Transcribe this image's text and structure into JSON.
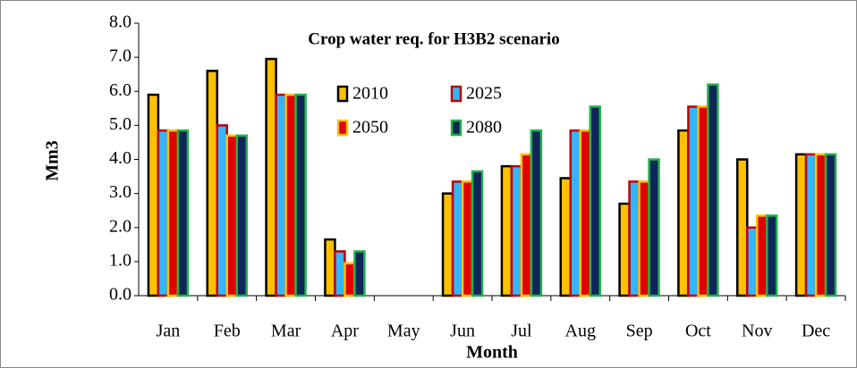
{
  "chart_data": {
    "type": "bar",
    "title": "Crop water req. for H3B2 scenario",
    "xlabel": "Month",
    "ylabel": "Mm3",
    "categories": [
      "Jan",
      "Feb",
      "Mar",
      "Apr",
      "May",
      "Jun",
      "Jul",
      "Aug",
      "Sep",
      "Oct",
      "Nov",
      "Dec"
    ],
    "series": [
      {
        "name": "2010",
        "color": "#ffc000",
        "edgecolor": "#000000",
        "values": [
          5.9,
          6.6,
          6.95,
          1.65,
          0,
          3.0,
          3.8,
          3.45,
          2.7,
          4.85,
          4.0,
          4.15
        ]
      },
      {
        "name": "2025",
        "color": "#33b5ff",
        "edgecolor": "#c00000",
        "values": [
          4.85,
          5.0,
          5.9,
          1.3,
          0,
          3.35,
          3.8,
          4.85,
          3.35,
          5.55,
          2.0,
          4.15
        ]
      },
      {
        "name": "2050",
        "color": "#e00000",
        "edgecolor": "#ffc000",
        "values": [
          4.85,
          4.7,
          5.9,
          0.95,
          0,
          3.35,
          4.15,
          4.85,
          3.35,
          5.55,
          2.35,
          4.15
        ]
      },
      {
        "name": "2080",
        "color": "#10255a",
        "edgecolor": "#22b14c",
        "values": [
          4.85,
          4.7,
          5.9,
          1.3,
          0,
          3.65,
          4.85,
          5.55,
          4.0,
          6.2,
          2.35,
          4.15
        ]
      }
    ],
    "ylim": [
      0,
      8
    ],
    "yticks": [
      {
        "value": 0,
        "label": "0.0"
      },
      {
        "value": 1,
        "label": "1.0"
      },
      {
        "value": 2,
        "label": "2.0"
      },
      {
        "value": 3,
        "label": "3.0"
      },
      {
        "value": 4,
        "label": "4.0"
      },
      {
        "value": 5,
        "label": "5.0"
      },
      {
        "value": 6,
        "label": "6.0"
      },
      {
        "value": 7,
        "label": "7.0"
      },
      {
        "value": 8,
        "label": "8.0"
      }
    ],
    "grid": false
  }
}
